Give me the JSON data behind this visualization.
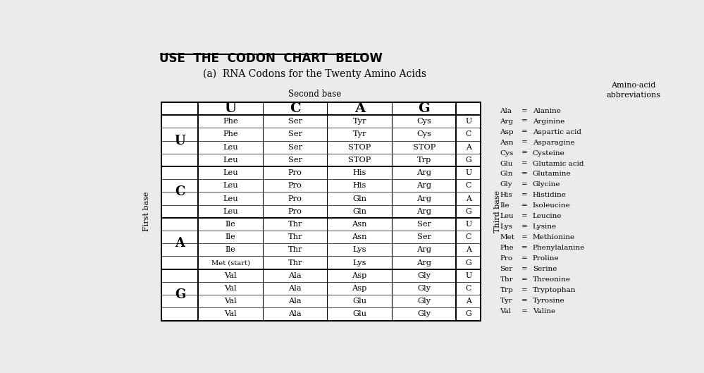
{
  "title_main": "USE  THE  CODON  CHART  BELOW",
  "subtitle": "(a)  RNA Codons for the Twenty Amino Acids",
  "second_base_label": "Second base",
  "first_base_label": "First base",
  "third_base_label": "Third base",
  "second_bases": [
    "U",
    "C",
    "A",
    "G"
  ],
  "first_bases": [
    "U",
    "C",
    "A",
    "G"
  ],
  "table_data": [
    [
      "Phe",
      "Ser",
      "Tyr",
      "Cys",
      "U"
    ],
    [
      "Phe",
      "Ser",
      "Tyr",
      "Cys",
      "C"
    ],
    [
      "Leu",
      "Ser",
      "STOP",
      "STOP",
      "A"
    ],
    [
      "Leu",
      "Ser",
      "STOP",
      "Trp",
      "G"
    ],
    [
      "Leu",
      "Pro",
      "His",
      "Arg",
      "U"
    ],
    [
      "Leu",
      "Pro",
      "His",
      "Arg",
      "C"
    ],
    [
      "Leu",
      "Pro",
      "Gln",
      "Arg",
      "A"
    ],
    [
      "Leu",
      "Pro",
      "Gln",
      "Arg",
      "G"
    ],
    [
      "Ile",
      "Thr",
      "Asn",
      "Ser",
      "U"
    ],
    [
      "Ile",
      "Thr",
      "Asn",
      "Ser",
      "C"
    ],
    [
      "Ile",
      "Thr",
      "Lys",
      "Arg",
      "A"
    ],
    [
      "Met (start)",
      "Thr",
      "Lys",
      "Arg",
      "G"
    ],
    [
      "Val",
      "Ala",
      "Asp",
      "Gly",
      "U"
    ],
    [
      "Val",
      "Ala",
      "Asp",
      "Gly",
      "C"
    ],
    [
      "Val",
      "Ala",
      "Glu",
      "Gly",
      "A"
    ],
    [
      "Val",
      "Ala",
      "Glu",
      "Gly",
      "G"
    ]
  ],
  "abbreviations": [
    [
      "Ala",
      "=",
      "Alanine"
    ],
    [
      "Arg",
      "=",
      "Arginine"
    ],
    [
      "Asp",
      "=",
      "Aspartic acid"
    ],
    [
      "Asn",
      "=",
      "Asparagine"
    ],
    [
      "Cys",
      "=",
      "Cysteine"
    ],
    [
      "Glu",
      "=",
      "Glutamic acid"
    ],
    [
      "Gln",
      "=",
      "Glutamine"
    ],
    [
      "Gly",
      "=",
      "Glycine"
    ],
    [
      "His",
      "=",
      "Histidine"
    ],
    [
      "Ile",
      "=",
      "Isoleucine"
    ],
    [
      "Leu",
      "=",
      "Leucine"
    ],
    [
      "Lys",
      "=",
      "Lysine"
    ],
    [
      "Met",
      "=",
      "Methionine"
    ],
    [
      "Phe",
      "=",
      "Phenylalanine"
    ],
    [
      "Pro",
      "=",
      "Proline"
    ],
    [
      "Ser",
      "=",
      "Serine"
    ],
    [
      "Thr",
      "=",
      "Threonine"
    ],
    [
      "Trp",
      "=",
      "Tryptophan"
    ],
    [
      "Tyr",
      "=",
      "Tyrosine"
    ],
    [
      "Val",
      "=",
      "Valine"
    ]
  ],
  "bg_color": "#ebebeb",
  "table_bg": "#ffffff"
}
